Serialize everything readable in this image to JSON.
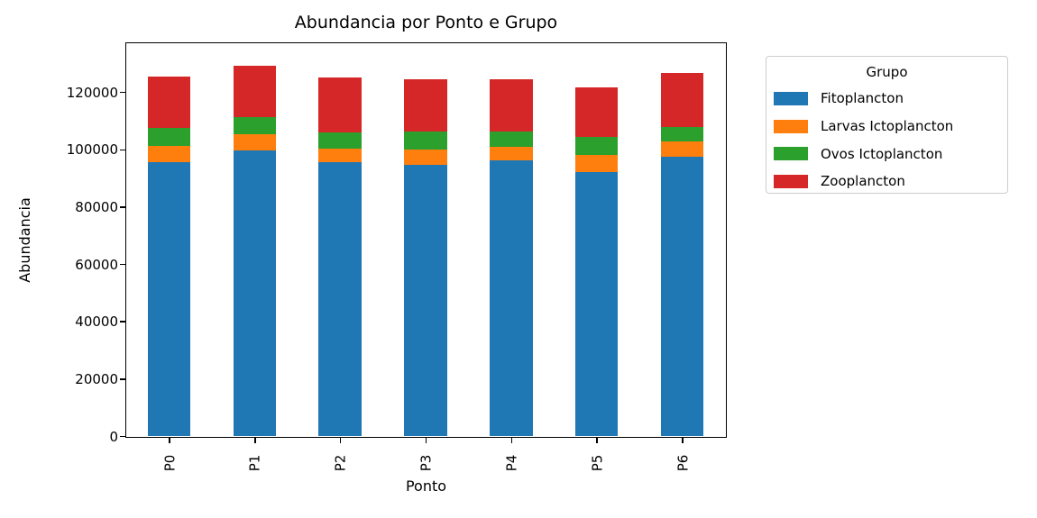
{
  "chart_data": {
    "type": "bar",
    "stacked": true,
    "title": "Abundancia por Ponto e Grupo",
    "xlabel": "Ponto",
    "ylabel": "Abundancia",
    "categories": [
      "P0",
      "P1",
      "P2",
      "P3",
      "P4",
      "P5",
      "P6"
    ],
    "series": [
      {
        "name": "Fitoplancton",
        "color": "#1f77b4",
        "values": [
          95600,
          99600,
          95400,
          94600,
          96200,
          92000,
          97400
        ]
      },
      {
        "name": "Larvas Ictoplancton",
        "color": "#ff7f0e",
        "values": [
          5700,
          5600,
          4800,
          5400,
          4600,
          6000,
          5500
        ]
      },
      {
        "name": "Ovos Ictoplancton",
        "color": "#2ca02c",
        "values": [
          6300,
          6100,
          5800,
          6300,
          5500,
          6200,
          5000
        ]
      },
      {
        "name": "Zooplancton",
        "color": "#d62728",
        "values": [
          17900,
          18000,
          19000,
          18100,
          18000,
          17300,
          18800
        ]
      }
    ],
    "ylim": [
      0,
      137000
    ],
    "yticks": [
      0,
      20000,
      40000,
      60000,
      80000,
      100000,
      120000
    ],
    "grid": false,
    "legend_title": "Grupo",
    "legend_position": "outside-upper-right",
    "bar_relative_width": 0.5,
    "xtick_rotation_deg": 90
  }
}
